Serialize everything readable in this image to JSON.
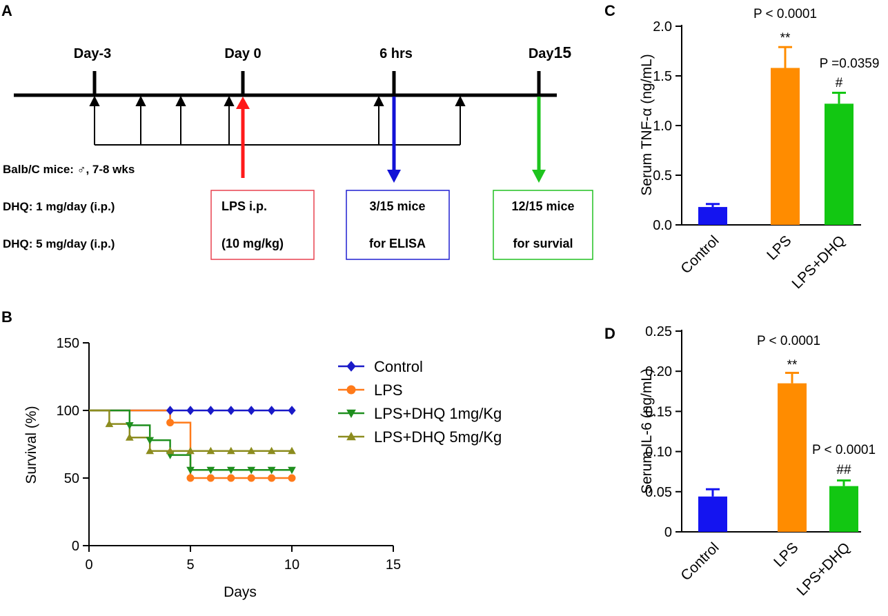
{
  "panels": {
    "a": "A",
    "b": "B",
    "c": "C",
    "d": "D"
  },
  "timeline": {
    "labels": [
      "Day-3",
      "Day 0",
      "6 hrs"
    ],
    "day15_prefix": "Day",
    "day15_num": "15",
    "notes": [
      "Balb/C mice: ♂, 7-8 wks",
      "DHQ: 1 mg/day (i.p.)",
      "DHQ: 5 mg/day (i.p.)"
    ],
    "boxes": [
      {
        "line1": "LPS i.p.",
        "line2": "(10 mg/kg)",
        "color": "#e8404f"
      },
      {
        "line1": "3/15 mice",
        "line2": "for ELISA",
        "color": "#1f1fd1"
      },
      {
        "line1": "12/15 mice",
        "line2": "for survial",
        "color": "#20c020"
      }
    ],
    "arrow_colors": {
      "red": "#ff1a1a",
      "blue": "#1212d6",
      "green": "#1ec41e"
    }
  },
  "chart_data": [
    {
      "type": "line",
      "subtype": "survival-step",
      "xlabel": "Days",
      "ylabel": "Survival (%)",
      "xlim": [
        0,
        15
      ],
      "ylim": [
        0,
        150
      ],
      "xticks": [
        0,
        5,
        10,
        15
      ],
      "yticks": [
        0,
        50,
        100,
        150
      ],
      "legend_position": "right",
      "series": [
        {
          "name": "Control",
          "color": "#1a1ac8",
          "marker": "diamond",
          "steps": [
            [
              0,
              100
            ],
            [
              10,
              100
            ]
          ],
          "markers": [
            [
              4,
              100
            ],
            [
              5,
              100
            ],
            [
              6,
              100
            ],
            [
              7,
              100
            ],
            [
              8,
              100
            ],
            [
              9,
              100
            ],
            [
              10,
              100
            ]
          ]
        },
        {
          "name": "LPS",
          "color": "#ff7a1a",
          "marker": "circle",
          "steps": [
            [
              0,
              100
            ],
            [
              4,
              100
            ],
            [
              4,
              91
            ],
            [
              5,
              91
            ],
            [
              5,
              50
            ],
            [
              10,
              50
            ]
          ],
          "markers": [
            [
              4,
              91
            ],
            [
              5,
              50
            ],
            [
              6,
              50
            ],
            [
              7,
              50
            ],
            [
              8,
              50
            ],
            [
              9,
              50
            ],
            [
              10,
              50
            ]
          ]
        },
        {
          "name": "LPS+DHQ 1mg/Kg",
          "color": "#1f8f1f",
          "marker": "triangle-down",
          "steps": [
            [
              0,
              100
            ],
            [
              2,
              100
            ],
            [
              2,
              89
            ],
            [
              3,
              89
            ],
            [
              3,
              78
            ],
            [
              4,
              78
            ],
            [
              4,
              67
            ],
            [
              5,
              67
            ],
            [
              5,
              56
            ],
            [
              10,
              56
            ]
          ],
          "markers": [
            [
              2,
              89
            ],
            [
              3,
              78
            ],
            [
              4,
              67
            ],
            [
              5,
              56
            ],
            [
              6,
              56
            ],
            [
              7,
              56
            ],
            [
              8,
              56
            ],
            [
              9,
              56
            ],
            [
              10,
              56
            ]
          ]
        },
        {
          "name": "LPS+DHQ 5mg/Kg",
          "color": "#8c8c1f",
          "marker": "triangle-up",
          "steps": [
            [
              0,
              100
            ],
            [
              1,
              100
            ],
            [
              1,
              90
            ],
            [
              2,
              90
            ],
            [
              2,
              80
            ],
            [
              3,
              80
            ],
            [
              3,
              70
            ],
            [
              10,
              70
            ]
          ],
          "markers": [
            [
              1,
              90
            ],
            [
              2,
              80
            ],
            [
              3,
              70
            ],
            [
              4,
              70
            ],
            [
              5,
              70
            ],
            [
              6,
              70
            ],
            [
              7,
              70
            ],
            [
              8,
              70
            ],
            [
              9,
              70
            ],
            [
              10,
              70
            ]
          ]
        }
      ]
    },
    {
      "type": "bar",
      "ylabel": "Serum TNF-α (ng/mL)",
      "ylim": [
        0,
        2.0
      ],
      "yticks": [
        "0.0",
        "0.5",
        "1.0",
        "1.5",
        "2.0"
      ],
      "categories": [
        "Control",
        "LPS",
        "LPS+DHQ"
      ],
      "values": [
        0.18,
        1.58,
        1.22
      ],
      "errors": [
        0.03,
        0.21,
        0.11
      ],
      "colors": [
        "#1414f0",
        "#ff8c00",
        "#12c712"
      ],
      "annotations": [
        {
          "category": "LPS",
          "pvalue": "P < 0.0001",
          "sig": "**"
        },
        {
          "category": "LPS+DHQ",
          "pvalue": "P =0.0359",
          "sig": "#"
        }
      ]
    },
    {
      "type": "bar",
      "ylabel": "Serum IL-6 (ng/mL)",
      "ylim": [
        0,
        0.25
      ],
      "yticks": [
        "0",
        "0.05",
        "0.10",
        "0.15",
        "0.20",
        "0.25"
      ],
      "categories": [
        "Control",
        "LPS",
        "LPS+DHQ"
      ],
      "values": [
        0.044,
        0.185,
        0.057
      ],
      "errors": [
        0.009,
        0.013,
        0.007
      ],
      "colors": [
        "#1414f0",
        "#ff8c00",
        "#12c712"
      ],
      "annotations": [
        {
          "category": "LPS",
          "pvalue": "P < 0.0001",
          "sig": "**"
        },
        {
          "category": "LPS+DHQ",
          "pvalue": "P < 0.0001",
          "sig": "##"
        }
      ]
    }
  ]
}
